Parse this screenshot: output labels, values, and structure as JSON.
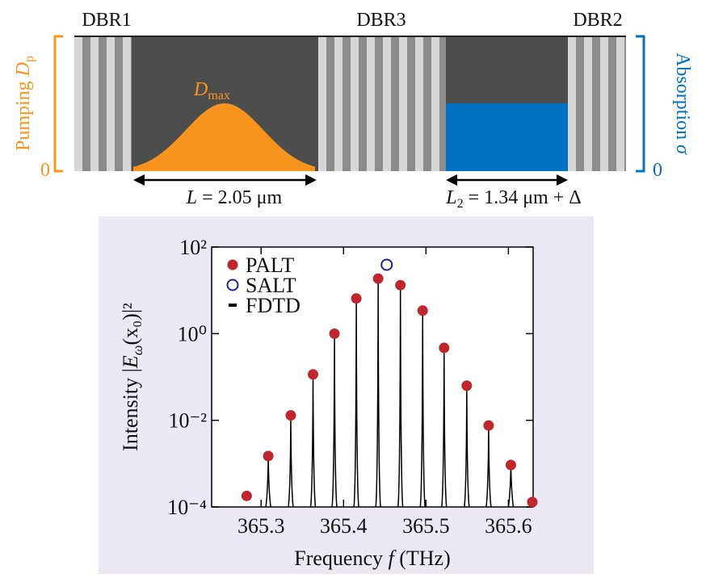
{
  "diagram": {
    "dbr1": "DBR1",
    "dbr3": "DBR3",
    "dbr2": "DBR2",
    "pump_label": "Pumping ",
    "pump_symbol": "D",
    "pump_sub": "p",
    "dmax_symbol": "D",
    "dmax_sub": "max",
    "absorption_label": "Absorption ",
    "absorption_symbol": "σ",
    "zero_left": "0",
    "zero_right": "0",
    "length1_symbol": "L",
    "length1_rest": " = 2.05 μm",
    "length2_symbol": "L",
    "length2_sub": "2",
    "length2_rest": " = 1.34 μm + Δ"
  },
  "chart_data": {
    "type": "scatter",
    "log_y": true,
    "xlabel": "Frequency ",
    "xlabel_symbol": "f",
    "xlabel_rest": " (THz)",
    "ylabel": "Intensity |",
    "ylabel_symbol": "E",
    "ylabel_sub": "ω",
    "ylabel_rest": "(x₀)|²",
    "xlim": [
      365.24,
      365.63
    ],
    "ylim": [
      0.0001,
      100
    ],
    "xticks": [
      365.3,
      365.4,
      365.5,
      365.6
    ],
    "yticks": [
      {
        "value": 100,
        "label": "10²"
      },
      {
        "value": 1,
        "label": "10⁰"
      },
      {
        "value": 0.01,
        "label": "10⁻²"
      },
      {
        "value": 0.0001,
        "label": "10⁻⁴"
      }
    ],
    "legend": "upper left",
    "series": [
      {
        "name": "PALT",
        "color": "#c0272d",
        "marker": "filled",
        "x": [
          365.2825,
          365.3087,
          365.336,
          365.363,
          365.389,
          365.4155,
          365.442,
          365.469,
          365.496,
          365.522,
          365.5495,
          365.576,
          365.603,
          365.629
        ],
        "values": [
          0.00018,
          0.0015,
          0.013,
          0.115,
          1.0,
          6.5,
          18.7,
          13.2,
          3.4,
          0.47,
          0.063,
          0.0076,
          0.00093,
          0.00013
        ]
      },
      {
        "name": "SALT",
        "color": "#1f1fa8",
        "marker": "open",
        "x": [
          365.4524
        ],
        "values": [
          39
        ]
      },
      {
        "name": "FDTD",
        "color": "#000000",
        "marker": "spike",
        "x": [
          365.3087,
          365.336,
          365.363,
          365.389,
          365.4155,
          365.442,
          365.469,
          365.496,
          365.522,
          365.5495,
          365.576,
          365.603
        ],
        "values": [
          0.0015,
          0.013,
          0.115,
          1.0,
          6.5,
          18.7,
          13.2,
          3.4,
          0.47,
          0.063,
          0.0076,
          0.00093
        ]
      }
    ]
  }
}
